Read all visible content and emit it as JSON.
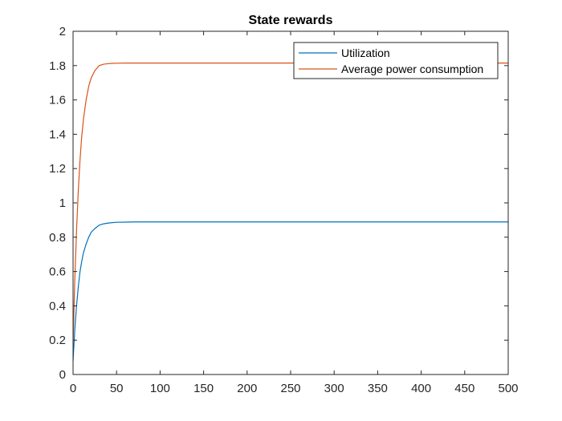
{
  "chart_data": {
    "type": "line",
    "title": "State rewards",
    "xlabel": "",
    "ylabel": "",
    "xlim": [
      0,
      500
    ],
    "ylim": [
      0,
      2
    ],
    "xticks": [
      0,
      50,
      100,
      150,
      200,
      250,
      300,
      350,
      400,
      450,
      500
    ],
    "yticks": [
      0,
      0.2,
      0.4,
      0.6,
      0.8,
      1,
      1.2,
      1.4,
      1.6,
      1.8,
      2
    ],
    "grid": false,
    "legend_position": "top-right",
    "series": [
      {
        "name": "Utilization",
        "color": "#0072BD",
        "x": [
          0,
          2,
          4,
          6,
          8,
          10,
          12,
          15,
          18,
          21,
          25,
          30,
          35,
          40,
          45,
          50,
          60,
          70,
          80,
          100,
          150,
          200,
          300,
          400,
          500
        ],
        "y": [
          0.08,
          0.26,
          0.4,
          0.51,
          0.6,
          0.66,
          0.71,
          0.76,
          0.8,
          0.83,
          0.85,
          0.87,
          0.878,
          0.882,
          0.885,
          0.887,
          0.888,
          0.889,
          0.889,
          0.889,
          0.889,
          0.889,
          0.889,
          0.889,
          0.889
        ]
      },
      {
        "name": "Average power consumption",
        "color": "#D95319",
        "x": [
          0,
          2,
          4,
          6,
          8,
          10,
          12,
          15,
          18,
          21,
          25,
          30,
          35,
          40,
          45,
          50,
          60,
          70,
          80,
          100,
          150,
          200,
          300,
          400,
          500
        ],
        "y": [
          0.18,
          0.55,
          0.84,
          1.07,
          1.25,
          1.39,
          1.49,
          1.6,
          1.68,
          1.73,
          1.77,
          1.8,
          1.808,
          1.811,
          1.813,
          1.814,
          1.815,
          1.815,
          1.815,
          1.815,
          1.815,
          1.815,
          1.815,
          1.815,
          1.815
        ]
      }
    ]
  }
}
